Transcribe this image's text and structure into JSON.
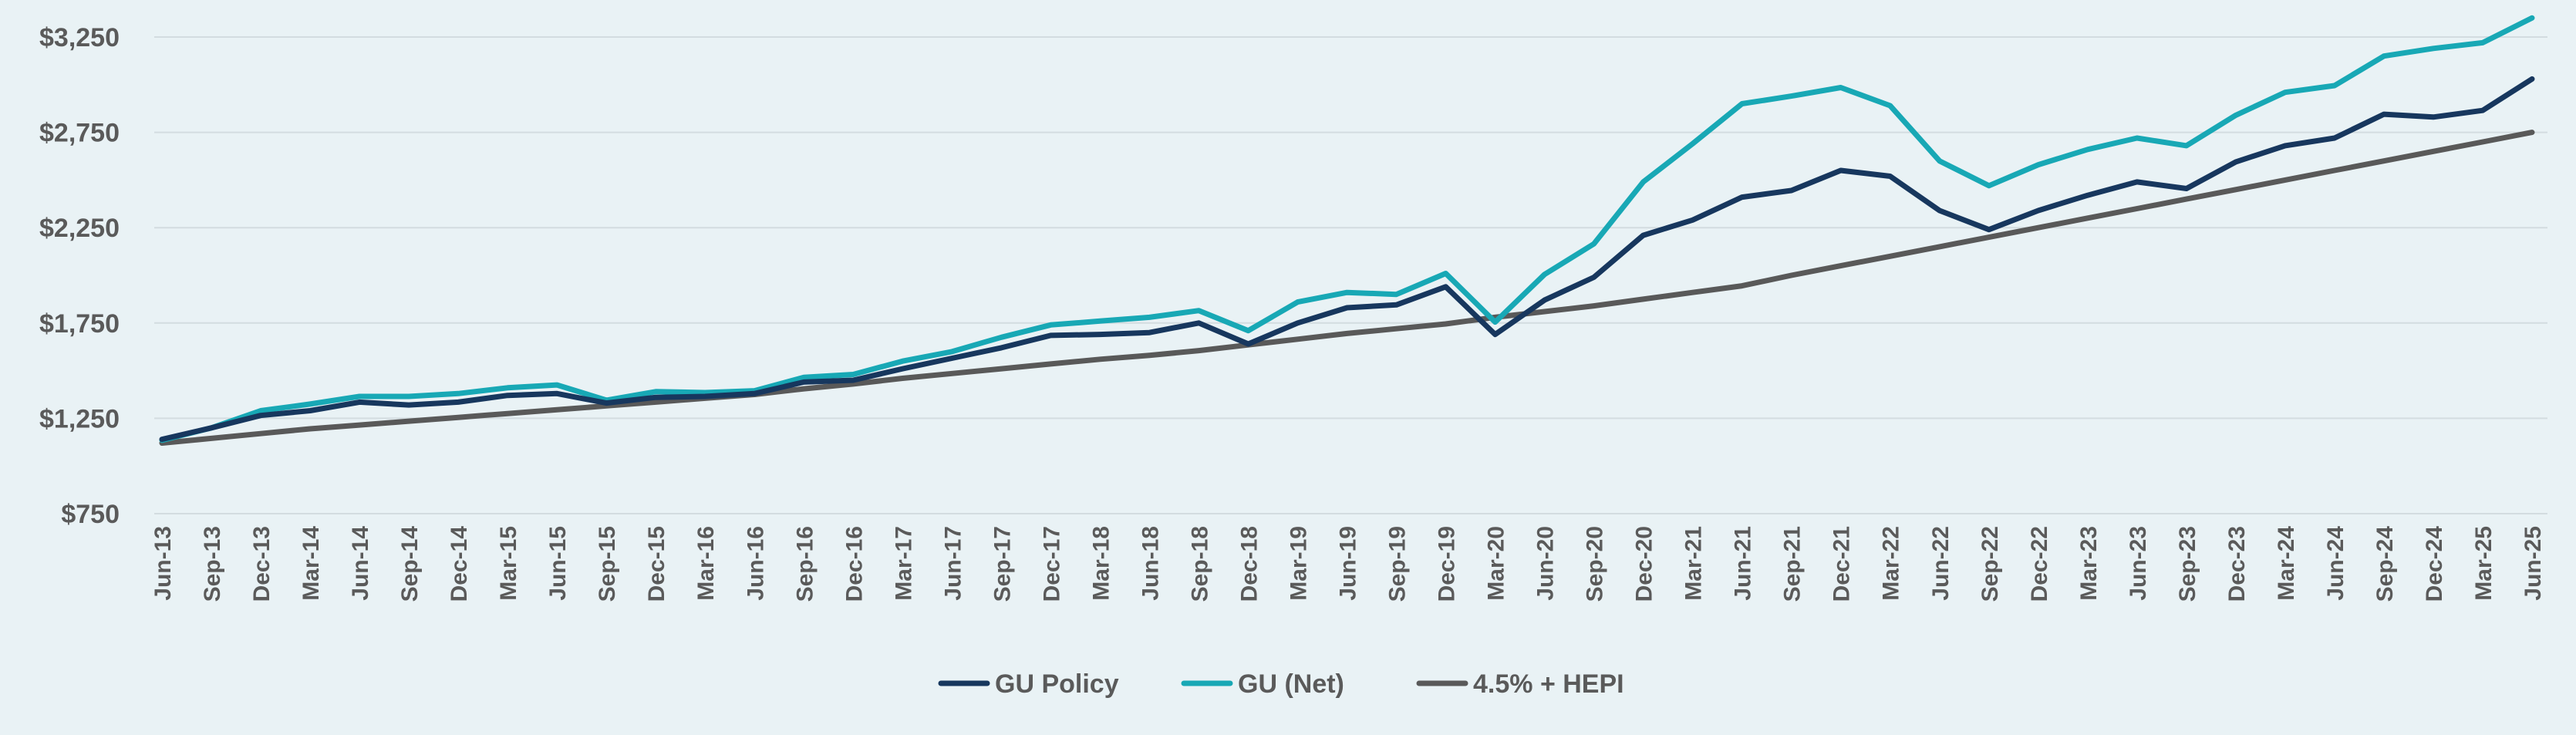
{
  "chart_data": {
    "type": "line",
    "title": "",
    "xlabel": "",
    "ylabel": "",
    "ylim": [
      750,
      3250
    ],
    "yticks": [
      750,
      1250,
      1750,
      2250,
      2750,
      3250
    ],
    "ytick_labels": [
      "$750",
      "$1,250",
      "$1,750",
      "$2,250",
      "$2,750",
      "$3,250"
    ],
    "grid": true,
    "legend_position": "bottom-center",
    "categories": [
      "Jun-13",
      "Sep-13",
      "Dec-13",
      "Mar-14",
      "Jun-14",
      "Sep-14",
      "Dec-14",
      "Mar-15",
      "Jun-15",
      "Sep-15",
      "Dec-15",
      "Mar-16",
      "Jun-16",
      "Sep-16",
      "Dec-16",
      "Mar-17",
      "Jun-17",
      "Sep-17",
      "Dec-17",
      "Mar-18",
      "Jun-18",
      "Sep-18",
      "Dec-18",
      "Mar-19",
      "Jun-19",
      "Sep-19",
      "Dec-19",
      "Mar-20",
      "Jun-20",
      "Sep-20",
      "Dec-20",
      "Mar-21",
      "Jun-21",
      "Sep-21",
      "Dec-21",
      "Mar-22",
      "Jun-22",
      "Sep-22",
      "Dec-22",
      "Mar-23",
      "Jun-23",
      "Sep-23",
      "Dec-23",
      "Mar-24",
      "Jun-24",
      "Sep-24",
      "Dec-24",
      "Mar-25",
      "Jun-25"
    ],
    "series": [
      {
        "name": "GU Policy",
        "color": "#17375e",
        "values": [
          1140,
          1200,
          1265,
          1290,
          1335,
          1320,
          1335,
          1370,
          1380,
          1330,
          1360,
          1365,
          1380,
          1440,
          1450,
          1510,
          1565,
          1620,
          1685,
          1690,
          1700,
          1750,
          1640,
          1750,
          1830,
          1845,
          1940,
          1690,
          1870,
          1990,
          2210,
          2290,
          2410,
          2445,
          2550,
          2520,
          2340,
          2240,
          2340,
          2420,
          2490,
          2455,
          2595,
          2680,
          2720,
          2845,
          2830,
          2865,
          3030
        ]
      },
      {
        "name": "GU (Net)",
        "color": "#18a8b5",
        "values": [
          1135,
          1200,
          1290,
          1325,
          1365,
          1365,
          1380,
          1410,
          1425,
          1345,
          1390,
          1385,
          1395,
          1465,
          1480,
          1550,
          1600,
          1675,
          1740,
          1760,
          1780,
          1815,
          1710,
          1860,
          1910,
          1900,
          2010,
          1755,
          2005,
          2165,
          2490,
          2690,
          2900,
          2940,
          2985,
          2890,
          2600,
          2470,
          2580,
          2660,
          2720,
          2680,
          2840,
          2960,
          2995,
          3150,
          3190,
          3220,
          3350
        ]
      },
      {
        "name": "4.5% + HEPI",
        "color": "#595959",
        "values": [
          1120,
          1145,
          1170,
          1195,
          1215,
          1235,
          1255,
          1275,
          1295,
          1315,
          1335,
          1355,
          1375,
          1405,
          1430,
          1460,
          1485,
          1510,
          1535,
          1560,
          1580,
          1605,
          1635,
          1665,
          1695,
          1720,
          1745,
          1780,
          1810,
          1840,
          1875,
          1910,
          1945,
          2000,
          2050,
          2100,
          2150,
          2200,
          2250,
          2300,
          2350,
          2400,
          2450,
          2500,
          2550,
          2600,
          2650,
          2700,
          2750
        ]
      }
    ]
  }
}
